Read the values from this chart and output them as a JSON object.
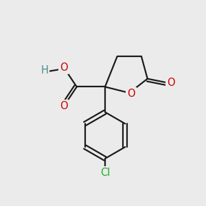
{
  "bg_color": "#ebebeb",
  "bond_color": "#1a1a1a",
  "o_color": "#cc0000",
  "cl_color": "#22aa22",
  "h_color": "#4a8a8a",
  "line_width": 1.6,
  "font_size_atom": 10.5,
  "fig_size": [
    3.0,
    3.0
  ],
  "dpi": 100,
  "xlim": [
    0,
    10
  ],
  "ylim": [
    0,
    10
  ]
}
